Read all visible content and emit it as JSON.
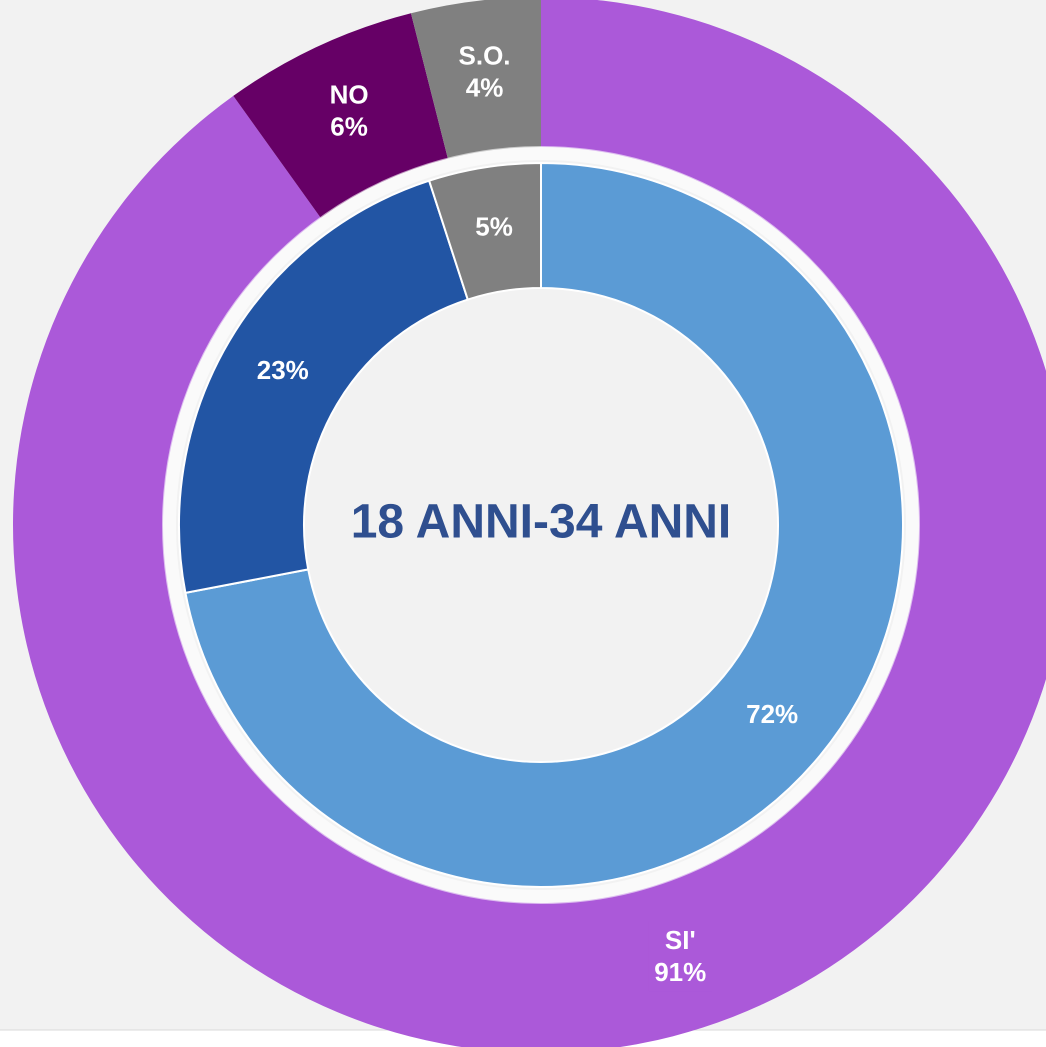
{
  "chart_data": {
    "type": "donut",
    "title": "18 ANNI-34 ANNI",
    "rings": [
      {
        "categories": [
          "SI'",
          "NO",
          "S.O."
        ],
        "values": [
          91,
          6,
          4
        ],
        "value_labels": [
          "91%",
          "6%",
          "4%"
        ],
        "colors": [
          "#ab59d9",
          "#660066",
          "#808080"
        ]
      },
      {
        "values": [
          72,
          23,
          5
        ],
        "value_labels": [
          "72%",
          "23%",
          "5%"
        ],
        "colors": [
          "#5b9bd5",
          "#2255a4",
          "#808080"
        ]
      }
    ]
  }
}
